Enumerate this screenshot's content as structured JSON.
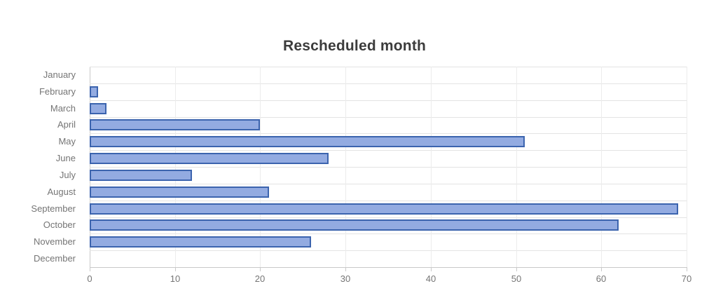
{
  "title": "Rescheduled month",
  "colors": {
    "bar_fill": "#93abe1",
    "bar_border": "#3c64ae",
    "row_gridline": "#e3e3e3",
    "vertical_gridline": "#ececec",
    "axis_line": "#c9c9c9",
    "tick_text": "#757575",
    "title_text": "#3c3c3c"
  },
  "chart_data": {
    "type": "bar",
    "orientation": "horizontal",
    "title": "Rescheduled month",
    "categories": [
      "January",
      "February",
      "March",
      "April",
      "May",
      "June",
      "July",
      "August",
      "September",
      "October",
      "November",
      "December"
    ],
    "values": [
      0,
      1,
      2,
      20,
      51,
      28,
      12,
      21,
      69,
      62,
      26,
      0
    ],
    "xlabel": "",
    "ylabel": "",
    "xlim": [
      0,
      70
    ],
    "xticks": [
      0,
      10,
      20,
      30,
      40,
      50,
      60,
      70
    ],
    "grid": true,
    "legend": false
  }
}
